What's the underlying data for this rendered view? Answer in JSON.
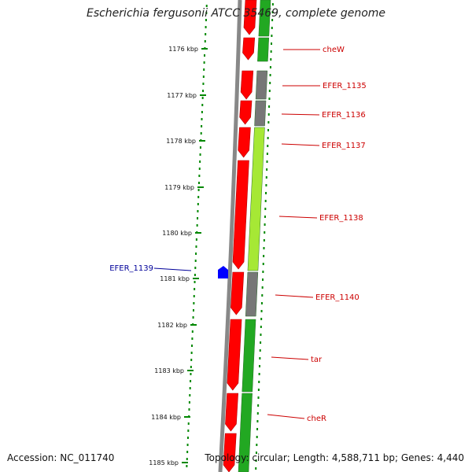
{
  "title": "Escherichia fergusonii ATCC 35469, complete genome",
  "accession": "Accession: NC_011740",
  "topology": "Topology: circular; Length: 4,588,711 bp; Genes: 4,440",
  "colors": {
    "forward_gene": "#ff0000",
    "reverse_gene_green": "#22a822",
    "reverse_gene_light": "#a6e835",
    "gray_gene": "#777777",
    "backbone": "#888888",
    "label_red": "#cc0000",
    "label_blue": "#000099",
    "tick_green": "#008800",
    "small_feature": "#0000ff"
  },
  "ticks": [
    {
      "label": "1176 kbp"
    },
    {
      "label": "1177 kbp"
    },
    {
      "label": "1178 kbp"
    },
    {
      "label": "1179 kbp"
    },
    {
      "label": "1180 kbp"
    },
    {
      "label": "1181 kbp"
    },
    {
      "label": "1182 kbp"
    },
    {
      "label": "1183 kbp"
    },
    {
      "label": "1184 kbp"
    },
    {
      "label": "1185 kbp"
    }
  ],
  "gene_labels": [
    {
      "name": "cheW",
      "color": "red"
    },
    {
      "name": "EFER_1135",
      "color": "red"
    },
    {
      "name": "EFER_1136",
      "color": "red"
    },
    {
      "name": "EFER_1137",
      "color": "red"
    },
    {
      "name": "EFER_1138",
      "color": "red"
    },
    {
      "name": "EFER_1140",
      "color": "red"
    },
    {
      "name": "tar",
      "color": "red"
    },
    {
      "name": "cheR",
      "color": "red"
    },
    {
      "name": "EFER_1139",
      "color": "blue"
    }
  ]
}
